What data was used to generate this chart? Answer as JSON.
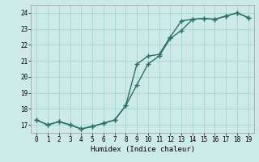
{
  "xlabel": "Humidex (Indice chaleur)",
  "ylabel": "",
  "bg_color": "#cceae7",
  "line_color": "#2d7068",
  "grid_color": "#aad4d0",
  "xlim": [
    -0.5,
    19.5
  ],
  "ylim": [
    16.5,
    24.5
  ],
  "xticks": [
    0,
    1,
    2,
    3,
    4,
    5,
    6,
    7,
    8,
    9,
    10,
    11,
    12,
    13,
    14,
    15,
    16,
    17,
    18,
    19
  ],
  "yticks": [
    17,
    18,
    19,
    20,
    21,
    22,
    23,
    24
  ],
  "line1_x": [
    0,
    1,
    2,
    3,
    4,
    5,
    6,
    7,
    8,
    9,
    10,
    11,
    12,
    13,
    14,
    15,
    16,
    17,
    18,
    19
  ],
  "line1_y": [
    17.3,
    17.0,
    17.2,
    17.0,
    16.75,
    16.9,
    17.1,
    17.3,
    18.2,
    19.5,
    20.8,
    21.3,
    22.4,
    22.9,
    23.6,
    23.65,
    23.6,
    23.8,
    24.0,
    23.7
  ],
  "line2_x": [
    0,
    1,
    2,
    3,
    4,
    5,
    6,
    7,
    8,
    9,
    10,
    11,
    12,
    13,
    14,
    15,
    16,
    17,
    18,
    19
  ],
  "line2_y": [
    17.3,
    17.0,
    17.2,
    17.0,
    16.75,
    16.9,
    17.1,
    17.3,
    18.2,
    20.8,
    21.3,
    21.4,
    22.5,
    23.5,
    23.6,
    23.65,
    23.6,
    23.8,
    24.0,
    23.7
  ],
  "marker_size": 4,
  "line_width": 1.0
}
